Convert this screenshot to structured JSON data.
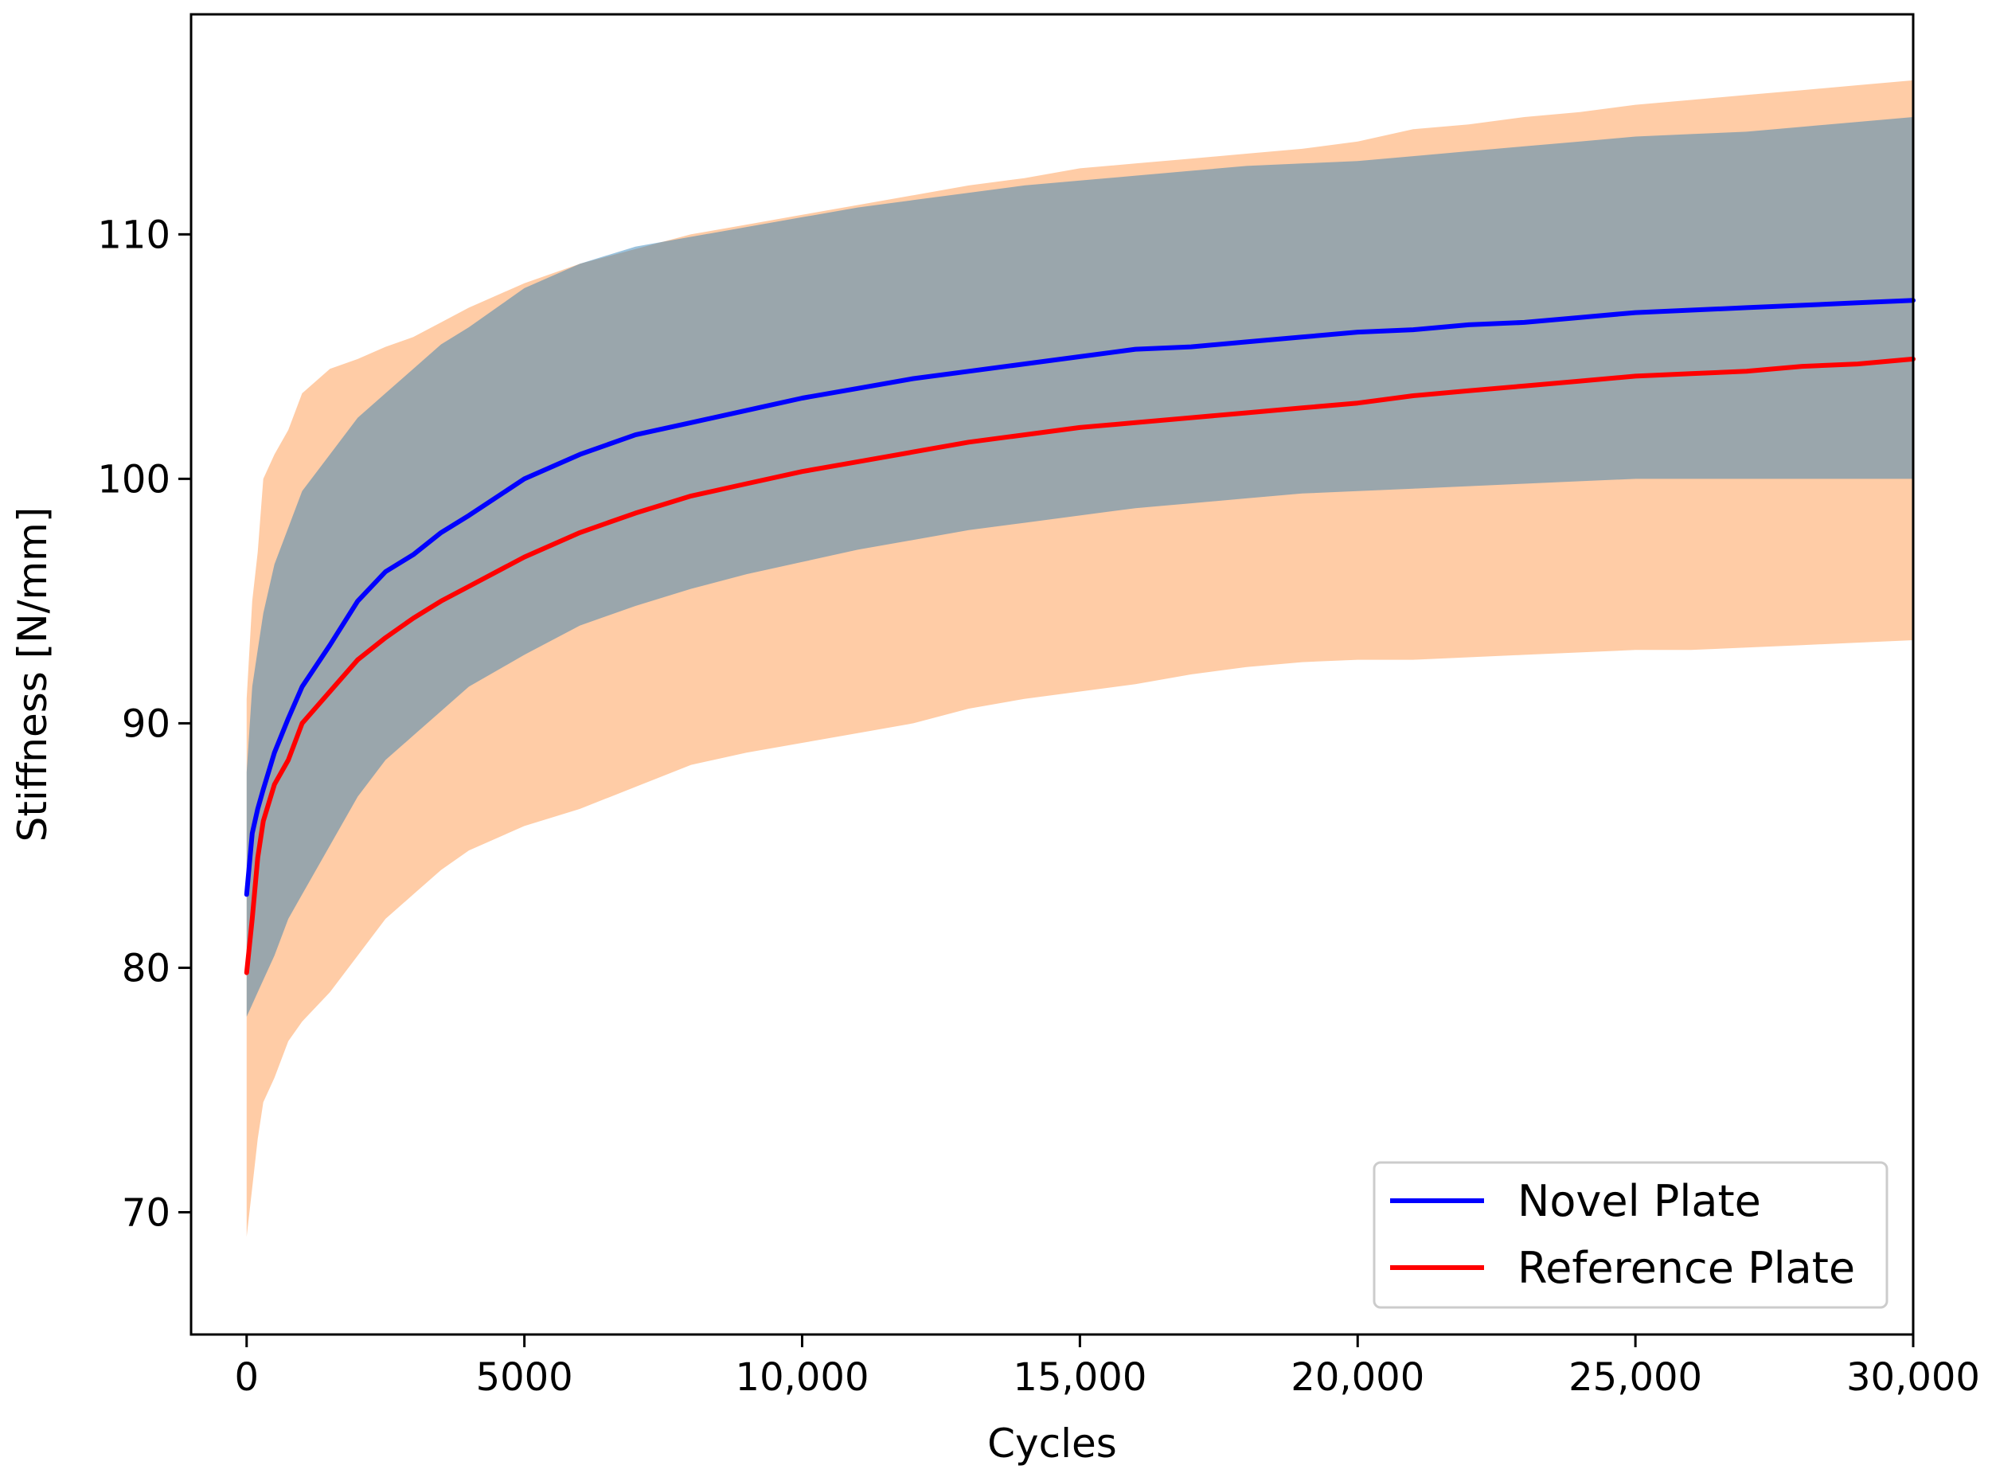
{
  "chart_data": {
    "type": "line",
    "xlabel": "Cycles",
    "ylabel": "Stiffness [N/mm]",
    "xlim": [
      -1000,
      30000
    ],
    "ylim": [
      65,
      119
    ],
    "xticks": [
      0,
      5000,
      10000,
      15000,
      20000,
      25000,
      30000
    ],
    "xtick_labels": [
      "0",
      "5000",
      "10,000",
      "15,000",
      "20,000",
      "25,000",
      "30,000"
    ],
    "yticks": [
      70,
      80,
      90,
      100,
      110
    ],
    "ytick_labels": [
      "70",
      "80",
      "90",
      "100",
      "110"
    ],
    "grid": false,
    "legend": {
      "position": "bottom-right"
    },
    "x": [
      0,
      100,
      200,
      300,
      500,
      750,
      1000,
      1500,
      2000,
      2500,
      3000,
      3500,
      4000,
      5000,
      6000,
      7000,
      8000,
      9000,
      10000,
      11000,
      12000,
      13000,
      14000,
      15000,
      16000,
      17000,
      18000,
      19000,
      20000,
      21000,
      22000,
      23000,
      24000,
      25000,
      26000,
      27000,
      28000,
      29000,
      30000
    ],
    "series": [
      {
        "name": "Novel Plate",
        "color": "#0000ff",
        "band_color": "#1f77b4",
        "values": [
          83.0,
          85.5,
          86.5,
          87.3,
          88.8,
          90.2,
          91.5,
          93.2,
          95.0,
          96.2,
          96.9,
          97.8,
          98.5,
          100.0,
          101.0,
          101.8,
          102.3,
          102.8,
          103.3,
          103.7,
          104.1,
          104.4,
          104.7,
          105.0,
          105.3,
          105.4,
          105.6,
          105.8,
          106.0,
          106.1,
          106.3,
          106.4,
          106.6,
          106.8,
          106.9,
          107.0,
          107.1,
          107.2,
          107.3
        ],
        "band_lower": [
          78.0,
          78.5,
          79.0,
          79.5,
          80.5,
          82.0,
          83.0,
          85.0,
          87.0,
          88.5,
          89.5,
          90.5,
          91.5,
          92.8,
          94.0,
          94.8,
          95.5,
          96.1,
          96.6,
          97.1,
          97.5,
          97.9,
          98.2,
          98.5,
          98.8,
          99.0,
          99.2,
          99.4,
          99.5,
          99.6,
          99.7,
          99.8,
          99.9,
          100.0,
          100.0,
          100.0,
          100.0,
          100.0,
          100.0
        ],
        "band_upper": [
          88.0,
          91.5,
          93.0,
          94.5,
          96.5,
          98.0,
          99.5,
          101.0,
          102.5,
          103.5,
          104.5,
          105.5,
          106.2,
          107.8,
          108.8,
          109.5,
          109.9,
          110.3,
          110.7,
          111.1,
          111.4,
          111.7,
          112.0,
          112.2,
          112.4,
          112.6,
          112.8,
          112.9,
          113.0,
          113.2,
          113.4,
          113.6,
          113.8,
          114.0,
          114.1,
          114.2,
          114.4,
          114.6,
          114.8
        ]
      },
      {
        "name": "Reference Plate",
        "color": "#ff0000",
        "band_color": "#ffbb88",
        "values": [
          79.8,
          82.0,
          84.5,
          86.0,
          87.5,
          88.5,
          90.0,
          91.3,
          92.6,
          93.5,
          94.3,
          95.0,
          95.6,
          96.8,
          97.8,
          98.6,
          99.3,
          99.8,
          100.3,
          100.7,
          101.1,
          101.5,
          101.8,
          102.1,
          102.3,
          102.5,
          102.7,
          102.9,
          103.1,
          103.4,
          103.6,
          103.8,
          104.0,
          104.2,
          104.3,
          104.4,
          104.6,
          104.7,
          104.9
        ],
        "band_lower": [
          69.0,
          71.0,
          73.0,
          74.5,
          75.5,
          77.0,
          77.8,
          79.0,
          80.5,
          82.0,
          83.0,
          84.0,
          84.8,
          85.8,
          86.5,
          87.4,
          88.3,
          88.8,
          89.2,
          89.6,
          90.0,
          90.6,
          91.0,
          91.3,
          91.6,
          92.0,
          92.3,
          92.5,
          92.6,
          92.6,
          92.7,
          92.8,
          92.9,
          93.0,
          93.0,
          93.1,
          93.2,
          93.3,
          93.4
        ],
        "band_upper": [
          91.0,
          95.0,
          97.0,
          100.0,
          101.0,
          102.0,
          103.5,
          104.5,
          104.9,
          105.4,
          105.8,
          106.4,
          107.0,
          108.0,
          108.8,
          109.4,
          110.0,
          110.4,
          110.8,
          111.2,
          111.6,
          112.0,
          112.3,
          112.7,
          112.9,
          113.1,
          113.3,
          113.5,
          113.8,
          114.3,
          114.5,
          114.8,
          115.0,
          115.3,
          115.5,
          115.7,
          115.9,
          116.1,
          116.3
        ]
      }
    ]
  }
}
